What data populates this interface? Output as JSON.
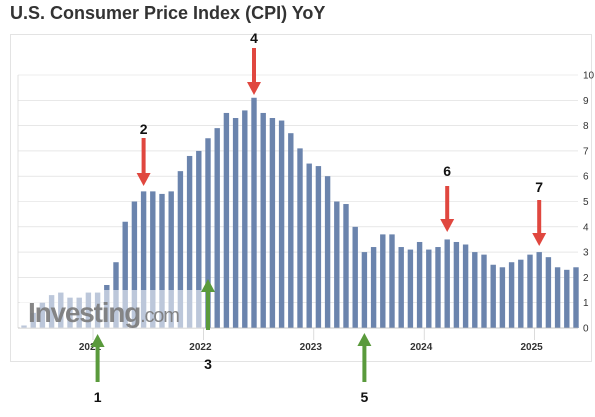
{
  "title": "U.S. Consumer Price Index (CPI) YoY",
  "watermark": {
    "brand": "Investing",
    "suffix": ".com"
  },
  "colors": {
    "bar": "#6b84ad",
    "red_arrow": "#e0473f",
    "green_arrow": "#5a9a3c",
    "axis_text": "#333333",
    "grid": "#d9d9d9"
  },
  "chart_data": {
    "type": "bar",
    "xlabel": "",
    "ylabel": "",
    "ylim": [
      0,
      10
    ],
    "y_ticks": [
      "0",
      "1",
      "2",
      "3",
      "4",
      "5",
      "6",
      "7",
      "8",
      "9",
      "10"
    ],
    "y_axis_side": "right",
    "x_tick_labels": [
      "2021",
      "2022",
      "2023",
      "2024",
      "2025"
    ],
    "x_tick_positions": [
      "2021-01",
      "2022-01",
      "2023-01",
      "2024-01",
      "2025-01"
    ],
    "categories": [
      "2020-05",
      "2020-06",
      "2020-07",
      "2020-08",
      "2020-09",
      "2020-10",
      "2020-11",
      "2020-12",
      "2021-01",
      "2021-02",
      "2021-03",
      "2021-04",
      "2021-05",
      "2021-06",
      "2021-07",
      "2021-08",
      "2021-09",
      "2021-10",
      "2021-11",
      "2021-12",
      "2022-01",
      "2022-02",
      "2022-03",
      "2022-04",
      "2022-05",
      "2022-06",
      "2022-07",
      "2022-08",
      "2022-09",
      "2022-10",
      "2022-11",
      "2022-12",
      "2023-01",
      "2023-02",
      "2023-03",
      "2023-04",
      "2023-05",
      "2023-06",
      "2023-07",
      "2023-08",
      "2023-09",
      "2023-10",
      "2023-11",
      "2023-12",
      "2024-01",
      "2024-02",
      "2024-03",
      "2024-04",
      "2024-05",
      "2024-06",
      "2024-07",
      "2024-08",
      "2024-09",
      "2024-10",
      "2024-11",
      "2024-12",
      "2025-01",
      "2025-02",
      "2025-03",
      "2025-04",
      "2025-05"
    ],
    "values": [
      0.1,
      0.6,
      1.0,
      1.3,
      1.4,
      1.2,
      1.2,
      1.4,
      1.4,
      1.7,
      2.6,
      4.2,
      5.0,
      5.4,
      5.4,
      5.3,
      5.4,
      6.2,
      6.8,
      7.0,
      7.5,
      7.9,
      8.5,
      8.3,
      8.6,
      9.1,
      8.5,
      8.3,
      8.2,
      7.7,
      7.1,
      6.5,
      6.4,
      6.0,
      5.0,
      4.9,
      4.0,
      3.0,
      3.2,
      3.7,
      3.7,
      3.2,
      3.1,
      3.4,
      3.1,
      3.2,
      3.5,
      3.4,
      3.3,
      3.0,
      2.9,
      2.5,
      2.4,
      2.6,
      2.7,
      2.9,
      3.0,
      2.8,
      2.4,
      2.3,
      2.4
    ],
    "annotations": [
      {
        "label": "1",
        "color": "green",
        "direction": "up",
        "at": "2021-01"
      },
      {
        "label": "2",
        "color": "red",
        "direction": "down",
        "at": "2021-06"
      },
      {
        "label": "3",
        "color": "green",
        "direction": "up",
        "at": "2022-01"
      },
      {
        "label": "4",
        "color": "red",
        "direction": "down",
        "at": "2022-06"
      },
      {
        "label": "5",
        "color": "green",
        "direction": "up",
        "at": "2023-06"
      },
      {
        "label": "6",
        "color": "red",
        "direction": "down",
        "at": "2024-03"
      },
      {
        "label": "7",
        "color": "red",
        "direction": "down",
        "at": "2025-01"
      }
    ],
    "grid": true,
    "legend": "none"
  }
}
